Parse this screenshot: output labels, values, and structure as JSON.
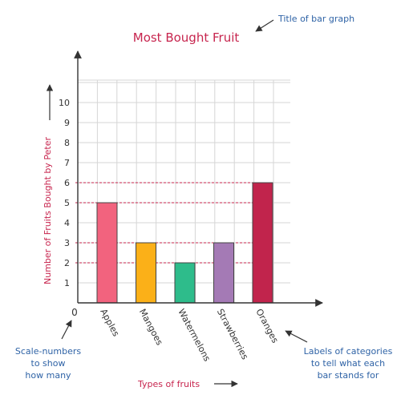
{
  "chart_data": {
    "type": "bar",
    "title": "Most Bought Fruit",
    "xlabel": "Types of fruits",
    "ylabel": "Number of Fruits Bought by Peter",
    "categories": [
      "Apples",
      "Mangoes",
      "Watermelons",
      "Strawberries",
      "Oranges"
    ],
    "values": [
      5,
      3,
      2,
      3,
      6
    ],
    "ylim": [
      0,
      10
    ],
    "yticks": [
      "1",
      "2",
      "3",
      "4",
      "5",
      "6",
      "7",
      "8",
      "9",
      "10"
    ],
    "origin_label": "0",
    "grid": true,
    "bar_colors": [
      "#f2637e",
      "#fbb018",
      "#2ebc8b",
      "#a47ab5",
      "#c1244c"
    ],
    "reference_lines": [
      2,
      3,
      5,
      6
    ]
  },
  "annotations": {
    "title_note": "Title of bar graph",
    "scale_note": [
      "Scale-numbers",
      "to show",
      "how many"
    ],
    "labels_note": [
      "Labels of categories",
      "to tell what each",
      "bar stands for"
    ]
  },
  "colors": {
    "title": "#c7254e",
    "annotation": "#2f63a6",
    "axis": "#333333",
    "grid": "#d6d6d6",
    "dashed": "#c7254e"
  }
}
